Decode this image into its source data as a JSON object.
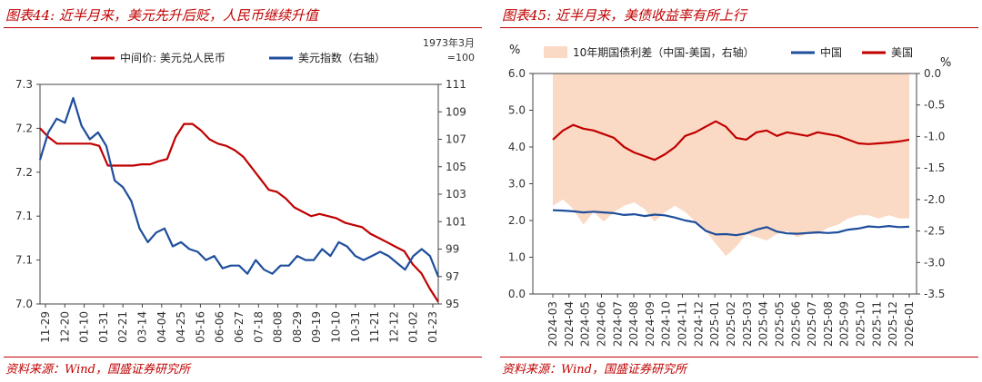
{
  "left_panel": {
    "caption": "图表44: 近半月来，美元先升后贬，人民币继续升值",
    "source": "资料来源：Wind，国盛证券研究所",
    "chart_data": {
      "type": "line",
      "right_axis_note_line1": "1973年3月",
      "right_axis_note_line2": "=100",
      "x_tick_labels": [
        "11-29",
        "12-20",
        "01-10",
        "01-31",
        "02-21",
        "03-14",
        "04-04",
        "04-25",
        "05-16",
        "06-06",
        "06-27",
        "07-18",
        "08-08",
        "08-29",
        "09-19",
        "10-10",
        "10-31",
        "11-21",
        "12-12",
        "01-02",
        "01-23"
      ],
      "y_left": {
        "ticks": [
          "7.0",
          "7.1",
          "7.1",
          "7.2",
          "7.2",
          "7.3"
        ],
        "range": [
          0,
          5
        ]
      },
      "y_right": {
        "ticks": [
          "95",
          "97",
          "99",
          "101",
          "103",
          "105",
          "107",
          "109",
          "111"
        ],
        "range": [
          95,
          111
        ]
      },
      "grid": false,
      "legend_position": "top",
      "series": [
        {
          "name": "中间价: 美元兑人民币",
          "color": "#c00000",
          "axis": "left",
          "values": [
            4.0,
            3.8,
            3.65,
            3.65,
            3.65,
            3.65,
            3.65,
            3.6,
            3.15,
            3.15,
            3.15,
            3.15,
            3.18,
            3.18,
            3.25,
            3.3,
            3.8,
            4.1,
            4.1,
            3.95,
            3.75,
            3.65,
            3.6,
            3.5,
            3.35,
            3.1,
            2.85,
            2.6,
            2.55,
            2.4,
            2.2,
            2.1,
            2.0,
            2.05,
            2.0,
            1.95,
            1.85,
            1.8,
            1.75,
            1.6,
            1.5,
            1.4,
            1.3,
            1.2,
            0.9,
            0.7,
            0.35,
            0.05
          ]
        },
        {
          "name": "美元指数（右轴）",
          "color": "#1f4e9c",
          "axis": "right",
          "values": [
            105.5,
            107.5,
            108.5,
            108.2,
            110.0,
            108.0,
            107.0,
            107.5,
            106.5,
            104.0,
            103.5,
            102.5,
            100.5,
            99.5,
            100.2,
            100.5,
            99.2,
            99.5,
            99.0,
            98.8,
            98.2,
            98.5,
            97.6,
            97.8,
            97.8,
            97.2,
            98.2,
            97.5,
            97.2,
            97.8,
            97.8,
            98.5,
            98.2,
            98.2,
            99.0,
            98.5,
            99.5,
            99.2,
            98.5,
            98.2,
            98.5,
            98.8,
            98.5,
            98.0,
            97.5,
            98.5,
            99.0,
            98.5,
            97.0
          ]
        }
      ]
    }
  },
  "right_panel": {
    "caption": "图表45: 近半月来，美债收益率有所上行",
    "source": "资料来源：Wind，国盛证券研究所",
    "chart_data": {
      "type": "line",
      "y_left_unit": "%",
      "y_right_unit": "%",
      "x_tick_labels": [
        "2024-03",
        "2024-04",
        "2024-05",
        "2024-06",
        "2024-07",
        "2024-08",
        "2024-09",
        "2024-10",
        "2024-11",
        "2024-12",
        "2025-01",
        "2025-02",
        "2025-03",
        "2025-04",
        "2025-05",
        "2025-06",
        "2025-07",
        "2025-08",
        "2025-09",
        "2025-10",
        "2025-11",
        "2025-12",
        "2026-01"
      ],
      "y_left": {
        "ticks": [
          "0.0",
          "1.0",
          "2.0",
          "3.0",
          "4.0",
          "5.0",
          "6.0"
        ],
        "range": [
          0,
          6
        ]
      },
      "y_right": {
        "ticks": [
          "-3.5",
          "-3.0",
          "-2.5",
          "-2.0",
          "-1.5",
          "-1.0",
          "-0.5",
          "0.0"
        ],
        "range": [
          -3.5,
          0
        ]
      },
      "grid": false,
      "legend_position": "top",
      "series": [
        {
          "name": "10年期国债利差（中国-美国，右轴）",
          "color": "#fbdac5",
          "type": "area",
          "axis": "right",
          "values": [
            -2.1,
            -2.0,
            -2.15,
            -2.4,
            -2.2,
            -2.35,
            -2.2,
            -2.1,
            -2.05,
            -2.15,
            -2.35,
            -2.2,
            -2.1,
            -2.2,
            -2.35,
            -2.5,
            -2.7,
            -2.9,
            -2.75,
            -2.55,
            -2.6,
            -2.65,
            -2.55,
            -2.5,
            -2.6,
            -2.55,
            -2.55,
            -2.45,
            -2.4,
            -2.3,
            -2.25,
            -2.25,
            -2.3,
            -2.25,
            -2.3,
            -2.3
          ]
        },
        {
          "name": "中国",
          "color": "#1f4e9c",
          "axis": "left",
          "values": [
            2.28,
            2.27,
            2.25,
            2.22,
            2.24,
            2.22,
            2.2,
            2.15,
            2.17,
            2.12,
            2.16,
            2.14,
            2.08,
            2.0,
            1.95,
            1.72,
            1.62,
            1.63,
            1.6,
            1.65,
            1.75,
            1.82,
            1.7,
            1.65,
            1.64,
            1.66,
            1.68,
            1.66,
            1.68,
            1.75,
            1.78,
            1.84,
            1.82,
            1.85,
            1.82,
            1.83
          ]
        },
        {
          "name": "美国",
          "color": "#c00000",
          "axis": "left",
          "values": [
            4.2,
            4.45,
            4.6,
            4.5,
            4.45,
            4.35,
            4.25,
            4.0,
            3.85,
            3.75,
            3.65,
            3.8,
            4.0,
            4.3,
            4.4,
            4.55,
            4.7,
            4.55,
            4.25,
            4.2,
            4.4,
            4.45,
            4.3,
            4.4,
            4.35,
            4.3,
            4.4,
            4.35,
            4.3,
            4.2,
            4.1,
            4.08,
            4.1,
            4.12,
            4.15,
            4.2
          ]
        }
      ]
    }
  }
}
